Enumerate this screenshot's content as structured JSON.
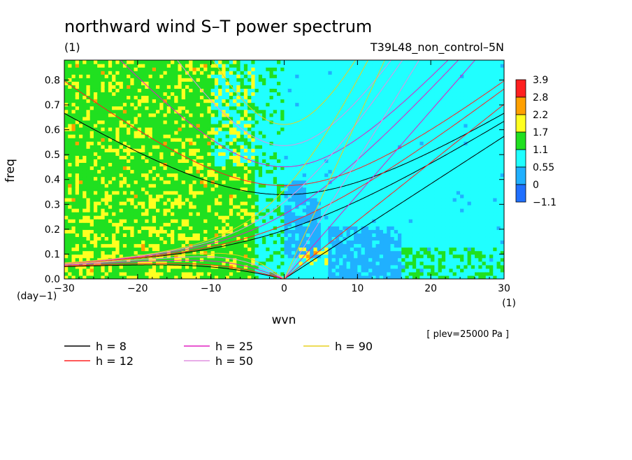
{
  "chart_data": {
    "type": "heatmap",
    "title": "northward wind S–T power spectrum",
    "title_unit": "(1)",
    "run_label": "T39L48_non_control–5N",
    "xlabel": "wvn",
    "x_unit": "(1)",
    "ylabel": "freq",
    "y_unit": "(day−1)",
    "xlim": [
      -30,
      30
    ],
    "ylim": [
      0,
      0.88
    ],
    "x_ticks": [
      "−30",
      "−20",
      "−10",
      "0",
      "10",
      "20",
      "30"
    ],
    "x_tick_values": [
      -30,
      -20,
      -10,
      0,
      10,
      20,
      30
    ],
    "y_ticks": [
      "0.0",
      "0.1",
      "0.2",
      "0.3",
      "0.4",
      "0.5",
      "0.6",
      "0.7",
      "0.8"
    ],
    "y_tick_values": [
      0,
      0.1,
      0.2,
      0.3,
      0.4,
      0.5,
      0.6,
      0.7,
      0.8
    ],
    "colorbar": {
      "labels": [
        "3.9",
        "2.8",
        "2.2",
        "1.7",
        "1.1",
        "0.55",
        "0",
        "−1.1"
      ],
      "colors": [
        "#ff2020",
        "#ffa000",
        "#ffff20",
        "#20e020",
        "#20ffff",
        "#20b0ff",
        "#2070ff"
      ]
    },
    "background_level_colors": {
      "west_dominant": "#20e020",
      "east_dominant": "#20ffff",
      "low": "#20b0ff",
      "high": "#ffff20",
      "peak": "#ffa000"
    },
    "dispersion_curves": [
      {
        "label": "h =  8",
        "color": "#000000"
      },
      {
        "label": "h = 12",
        "color": "#ff2020"
      },
      {
        "label": "h = 25",
        "color": "#e020c0"
      },
      {
        "label": "h = 50",
        "color": "#e090e0"
      },
      {
        "label": "h = 90",
        "color": "#e8d020"
      }
    ],
    "note": "[ plev=25000 Pa ]"
  }
}
